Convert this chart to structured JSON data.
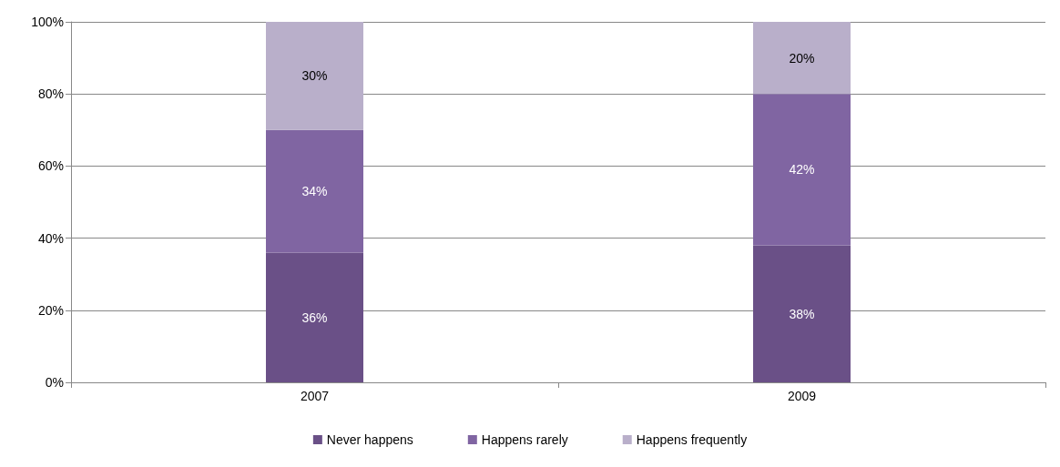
{
  "chart_data": {
    "type": "bar",
    "stacked": true,
    "categories": [
      "2007",
      "2009"
    ],
    "series": [
      {
        "name": "Never happens",
        "color": "#6a5087",
        "values": [
          36,
          38
        ],
        "value_labels": [
          "36%",
          "38%"
        ]
      },
      {
        "name": "Happens rarely",
        "color": "#8065a2",
        "values": [
          34,
          42
        ],
        "value_labels": [
          "34%",
          "42%"
        ]
      },
      {
        "name": "Happens frequently",
        "color": "#b9afca",
        "values": [
          30,
          20
        ],
        "value_labels": [
          "30%",
          "20%"
        ]
      }
    ],
    "ylim": [
      0,
      100
    ],
    "yticks": [
      {
        "value": 0,
        "label": "0%"
      },
      {
        "value": 20,
        "label": "20%"
      },
      {
        "value": 40,
        "label": "40%"
      },
      {
        "value": 60,
        "label": "60%"
      },
      {
        "value": 80,
        "label": "80%"
      },
      {
        "value": 100,
        "label": "100%"
      }
    ],
    "grid": "y",
    "legend": "bottom"
  }
}
